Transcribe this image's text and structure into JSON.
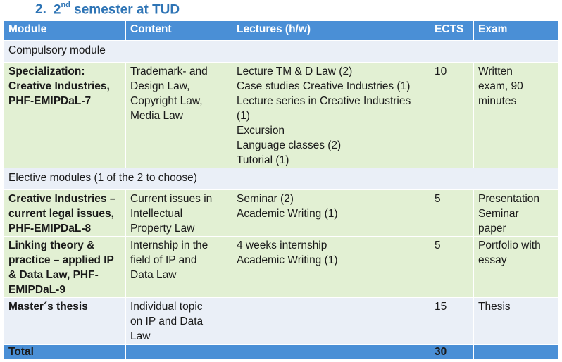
{
  "section": {
    "number": "2.",
    "title_pre": "2",
    "title_sup": "nd",
    "title_post": " semester at TUD"
  },
  "table": {
    "headers": [
      "Module",
      "Content",
      "Lectures (h/w)",
      "ECTS",
      "Exam"
    ],
    "compulsory_label": "Compulsory module",
    "elective_label": "Elective modules (1 of the 2 to choose)",
    "rows": [
      {
        "module": [
          "Specialization:",
          "Creative Industries,",
          "PHF-EMIPDaL-7"
        ],
        "content": [
          "Trademark- and",
          "Design Law,",
          "Copyright Law,",
          "Media Law"
        ],
        "lectures": [
          "Lecture TM & D Law (2)",
          "Case studies Creative Industries (1)",
          "Lecture series in Creative Industries",
          "(1)",
          "Excursion",
          "Language classes (2)",
          "Tutorial (1)"
        ],
        "ects": "10",
        "exam": [
          "Written",
          "exam, 90",
          "minutes"
        ]
      },
      {
        "module": [
          "Creative Industries –",
          "current legal issues,",
          "PHF-EMIPDaL-8"
        ],
        "content": [
          "Current issues in",
          "Intellectual",
          "Property Law"
        ],
        "lectures": [
          "Seminar (2)",
          "Academic Writing (1)"
        ],
        "ects": "5",
        "exam": [
          "Presentation",
          "Seminar",
          "paper"
        ]
      },
      {
        "module": [
          "Linking theory &",
          "practice – applied IP",
          "& Data Law, PHF-",
          "EMIPDaL-9"
        ],
        "content": [
          "Internship in the",
          "field of IP and",
          "Data Law"
        ],
        "lectures": [
          "4 weeks internship",
          "Academic Writing (1)"
        ],
        "ects": "5",
        "exam": [
          "Portfolio with",
          "essay"
        ]
      },
      {
        "module": [
          "Master´s thesis"
        ],
        "content": [
          "Individual topic",
          "on IP and Data",
          "Law"
        ],
        "lectures": [],
        "ects": "15",
        "exam": [
          "Thesis"
        ]
      }
    ],
    "total_label": "Total",
    "total_ects": "30"
  }
}
